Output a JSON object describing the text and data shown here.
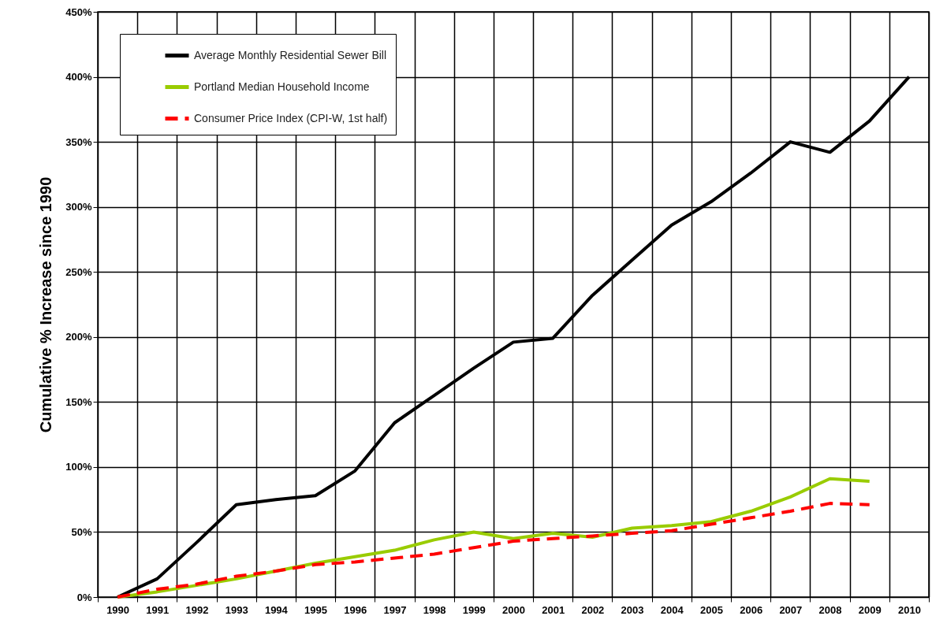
{
  "chart_data": {
    "type": "line",
    "ylabel": "Cumulative % Increase since 1990",
    "categories": [
      "1990",
      "1991",
      "1992",
      "1993",
      "1994",
      "1995",
      "1996",
      "1997",
      "1998",
      "1999",
      "2000",
      "2001",
      "2002",
      "2003",
      "2004",
      "2005",
      "2006",
      "2007",
      "2008",
      "2009",
      "2010"
    ],
    "series": [
      {
        "name": "Average Monthly Residential Sewer Bill",
        "color": "#000000",
        "line_style": "solid",
        "values": [
          0,
          14,
          42,
          71,
          75,
          78,
          97,
          134,
          155,
          176,
          196,
          199,
          232,
          259,
          286,
          304,
          326,
          350,
          342,
          366,
          400
        ]
      },
      {
        "name": "Portland Median Household Income",
        "color": "#99cc00",
        "line_style": "solid",
        "values": [
          0,
          4,
          9,
          14,
          20,
          26,
          31,
          36,
          44,
          50,
          45,
          49,
          46,
          53,
          55,
          58,
          66,
          77,
          91,
          89,
          null
        ]
      },
      {
        "name": "Consumer Price Index (CPI-W, 1st half)",
        "color": "#ff0000",
        "line_style": "dashed",
        "values": [
          0,
          6,
          10,
          16,
          20,
          25,
          27,
          30,
          33,
          38,
          43,
          45,
          47,
          49,
          51,
          56,
          61,
          66,
          72,
          71,
          null
        ]
      }
    ],
    "ylim": [
      0,
      450
    ],
    "yticks": [
      {
        "value": 0,
        "label": "0%"
      },
      {
        "value": 50,
        "label": "50%"
      },
      {
        "value": 100,
        "label": "100%"
      },
      {
        "value": 150,
        "label": "150%"
      },
      {
        "value": 200,
        "label": "200%"
      },
      {
        "value": 250,
        "label": "250%"
      },
      {
        "value": 300,
        "label": "300%"
      },
      {
        "value": 350,
        "label": "350%"
      },
      {
        "value": 400,
        "label": "400%"
      },
      {
        "value": 450,
        "label": "450%"
      }
    ],
    "grid": true,
    "legend": "top left"
  }
}
